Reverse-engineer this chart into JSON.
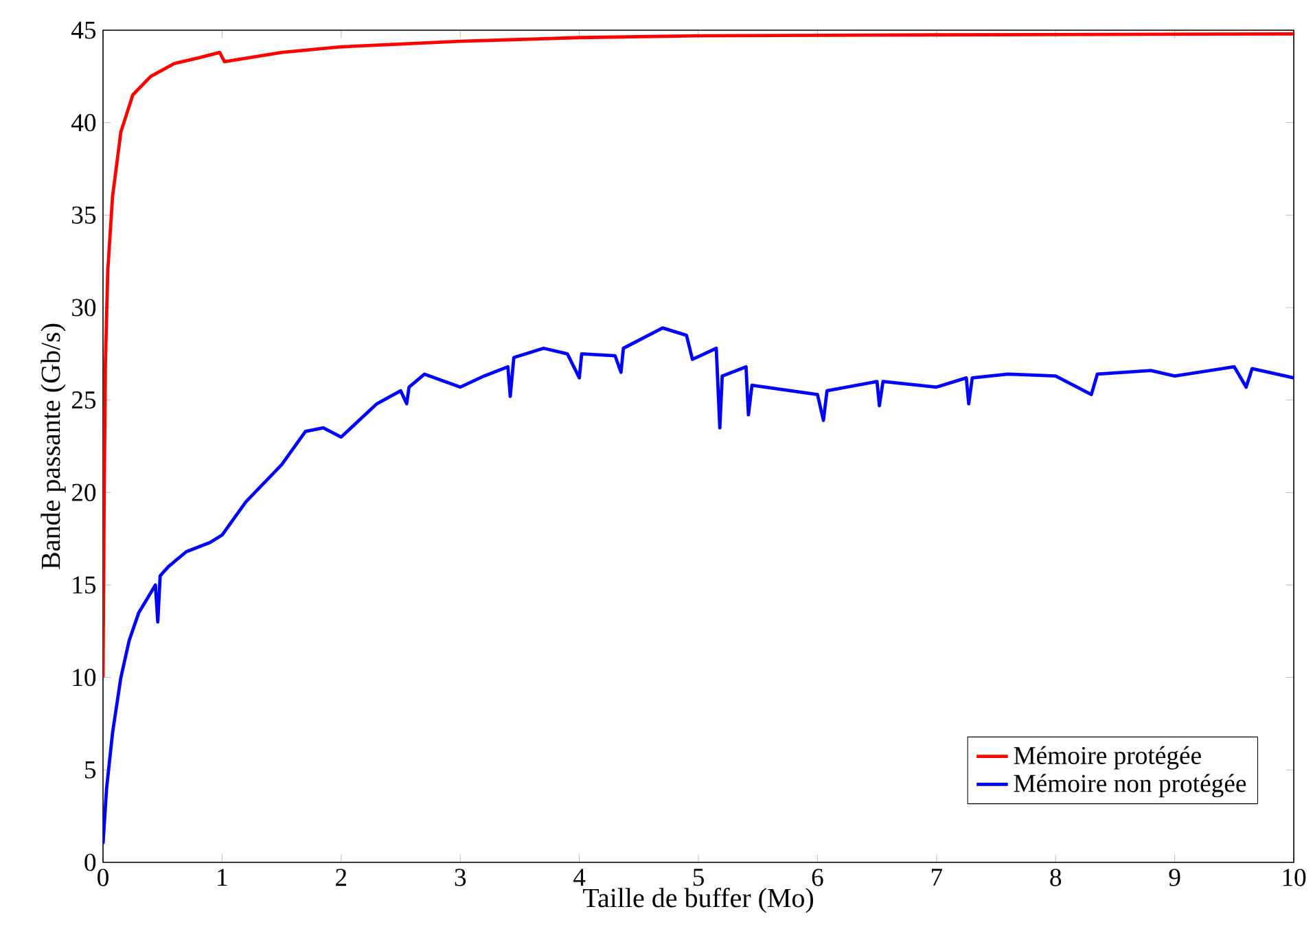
{
  "chart_data": {
    "type": "line",
    "xlabel": "Taille de buffer (Mo)",
    "ylabel": "Bande passante (Gb/s)",
    "xlim": [
      0,
      10
    ],
    "ylim": [
      0,
      45
    ],
    "xticks": [
      0,
      1,
      2,
      3,
      4,
      5,
      6,
      7,
      8,
      9,
      10
    ],
    "yticks": [
      0,
      5,
      10,
      15,
      20,
      25,
      30,
      35,
      40,
      45
    ],
    "grid": false,
    "legend": "bottom right",
    "line_style": "solid",
    "marker": "none",
    "series": [
      {
        "name": "Mémoire protégée",
        "color": "#ff0000",
        "x": [
          0,
          0.01,
          0.02,
          0.04,
          0.08,
          0.15,
          0.25,
          0.4,
          0.6,
          0.8,
          0.98,
          1.02,
          1.5,
          2,
          3,
          4,
          5,
          7,
          10
        ],
        "values": [
          10,
          20,
          27,
          32,
          36,
          39.5,
          41.5,
          42.5,
          43.2,
          43.5,
          43.8,
          43.3,
          43.8,
          44.1,
          44.4,
          44.6,
          44.7,
          44.75,
          44.8
        ]
      },
      {
        "name": "Mémoire non protégée",
        "color": "#0000ff",
        "x": [
          0,
          0.03,
          0.08,
          0.15,
          0.22,
          0.3,
          0.44,
          0.46,
          0.48,
          0.55,
          0.7,
          0.9,
          1,
          1.2,
          1.5,
          1.7,
          1.85,
          2,
          2.3,
          2.5,
          2.55,
          2.57,
          2.7,
          3,
          3.2,
          3.4,
          3.42,
          3.45,
          3.7,
          3.9,
          4.0,
          4.02,
          4.3,
          4.35,
          4.37,
          4.7,
          4.9,
          4.95,
          5.15,
          5.18,
          5.2,
          5.4,
          5.42,
          5.45,
          6,
          6.05,
          6.08,
          6.5,
          6.52,
          6.55,
          7,
          7.25,
          7.27,
          7.3,
          7.6,
          8,
          8.3,
          8.35,
          8.8,
          9,
          9.5,
          9.6,
          9.65,
          10
        ],
        "values": [
          1,
          4,
          7,
          10,
          12,
          13.5,
          15,
          13,
          15.5,
          16,
          16.8,
          17.3,
          17.7,
          19.5,
          21.5,
          23.3,
          23.5,
          23,
          24.8,
          25.5,
          24.8,
          25.7,
          26.4,
          25.7,
          26.3,
          26.8,
          25.2,
          27.3,
          27.8,
          27.5,
          26.2,
          27.5,
          27.4,
          26.5,
          27.8,
          28.9,
          28.5,
          27.2,
          27.8,
          23.5,
          26.3,
          26.8,
          24.2,
          25.8,
          25.3,
          23.9,
          25.5,
          26,
          24.7,
          26,
          25.7,
          26.2,
          24.8,
          26.2,
          26.4,
          26.3,
          25.3,
          26.4,
          26.6,
          26.3,
          26.8,
          25.7,
          26.7,
          26.2
        ]
      }
    ]
  }
}
